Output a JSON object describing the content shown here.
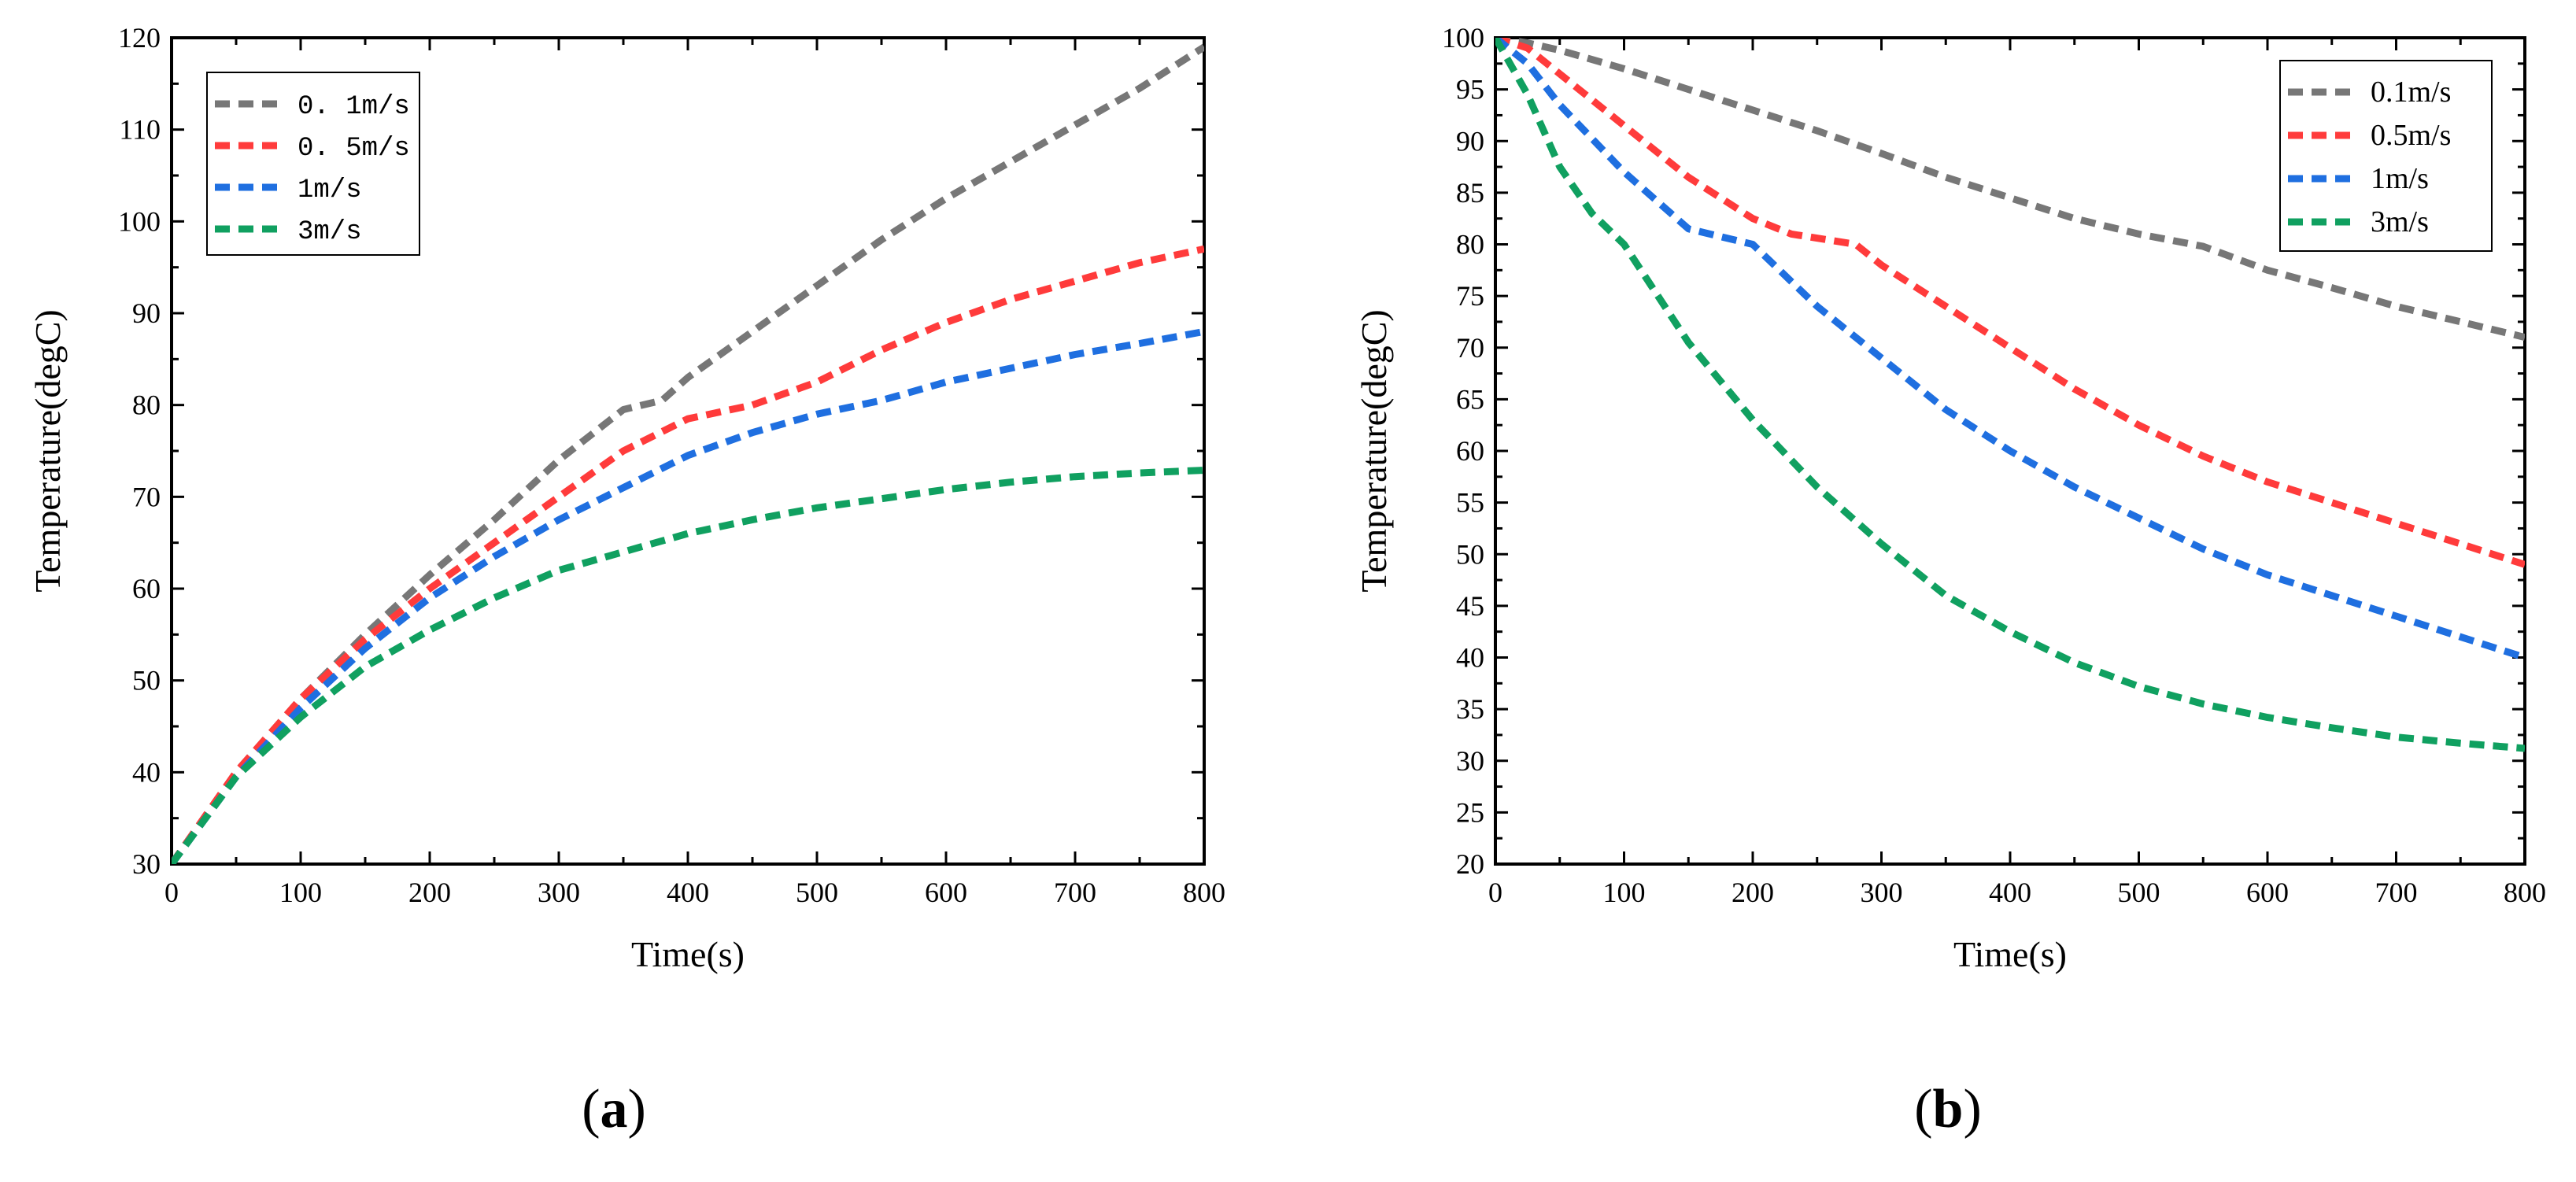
{
  "chart_data": [
    {
      "type": "line",
      "panel_label": "(a)",
      "panel_letter": "a",
      "xlabel": "Time(s)",
      "ylabel": "Temperature(degC)",
      "xlim": [
        0,
        800
      ],
      "ylim": [
        30,
        120
      ],
      "xticks": [
        0,
        100,
        200,
        300,
        400,
        500,
        600,
        700,
        800
      ],
      "yticks": [
        30,
        40,
        50,
        60,
        70,
        80,
        90,
        100,
        110,
        120
      ],
      "legend_position": "top-left",
      "series": [
        {
          "name": "0. 1m/s",
          "color": "#777777",
          "x": [
            0,
            50,
            100,
            150,
            200,
            250,
            300,
            350,
            380,
            400,
            450,
            500,
            550,
            600,
            650,
            700,
            750,
            800
          ],
          "y": [
            30,
            40,
            48,
            55,
            61.5,
            67.5,
            74,
            79.5,
            80.5,
            83,
            88,
            93,
            98,
            102.5,
            106.5,
            110.5,
            114.5,
            119
          ]
        },
        {
          "name": "0. 5m/s",
          "color": "#ff3b3b",
          "x": [
            0,
            50,
            100,
            150,
            200,
            250,
            300,
            350,
            400,
            450,
            500,
            550,
            600,
            650,
            700,
            750,
            800
          ],
          "y": [
            30,
            40,
            48,
            54.5,
            60,
            65,
            70,
            75,
            78.5,
            80,
            82.5,
            86,
            89,
            91.5,
            93.5,
            95.5,
            97
          ]
        },
        {
          "name": "1m/s",
          "color": "#1f6fe0",
          "x": [
            0,
            50,
            100,
            150,
            200,
            250,
            300,
            350,
            400,
            450,
            500,
            550,
            600,
            650,
            700,
            750,
            800
          ],
          "y": [
            30,
            39.5,
            47,
            53.5,
            59,
            63.5,
            67.5,
            71,
            74.5,
            77,
            79,
            80.5,
            82.5,
            84,
            85.5,
            86.7,
            88
          ]
        },
        {
          "name": "3m/s",
          "color": "#10a060",
          "x": [
            0,
            50,
            100,
            150,
            200,
            250,
            300,
            350,
            400,
            450,
            500,
            550,
            600,
            650,
            700,
            750,
            800
          ],
          "y": [
            30,
            39.5,
            46,
            51.5,
            55.5,
            59,
            62,
            64,
            66,
            67.5,
            68.8,
            69.8,
            70.8,
            71.6,
            72.2,
            72.6,
            72.9
          ]
        }
      ]
    },
    {
      "type": "line",
      "panel_label": "(b)",
      "panel_letter": "b",
      "xlabel": "Time(s)",
      "ylabel": "Temperature(degC)",
      "xlim": [
        0,
        800
      ],
      "ylim": [
        20,
        100
      ],
      "xticks": [
        0,
        100,
        200,
        300,
        400,
        500,
        600,
        700,
        800
      ],
      "yticks": [
        20,
        25,
        30,
        35,
        40,
        45,
        50,
        55,
        60,
        65,
        70,
        75,
        80,
        85,
        90,
        95,
        100
      ],
      "legend_position": "top-right",
      "series": [
        {
          "name": "0.1m/s",
          "color": "#777777",
          "x": [
            0,
            25,
            50,
            100,
            150,
            200,
            250,
            300,
            350,
            400,
            450,
            500,
            550,
            600,
            650,
            700,
            750,
            800
          ],
          "y": [
            100,
            99.5,
            98.8,
            97,
            95,
            93,
            91,
            88.8,
            86.5,
            84.5,
            82.5,
            81,
            79.8,
            77.5,
            75.8,
            74,
            72.5,
            71
          ]
        },
        {
          "name": "0.5m/s",
          "color": "#ff3b3b",
          "x": [
            0,
            25,
            50,
            100,
            150,
            200,
            230,
            280,
            300,
            350,
            400,
            450,
            500,
            550,
            600,
            650,
            700,
            750,
            800
          ],
          "y": [
            100,
            99,
            96.5,
            91.5,
            86.5,
            82.5,
            81,
            80,
            78,
            74,
            70,
            66,
            62.5,
            59.5,
            57,
            55,
            53,
            51,
            49
          ]
        },
        {
          "name": "1m/s",
          "color": "#1f6fe0",
          "x": [
            0,
            25,
            50,
            100,
            150,
            200,
            250,
            300,
            350,
            400,
            450,
            500,
            550,
            600,
            650,
            700,
            750,
            800
          ],
          "y": [
            100,
            97.5,
            93.5,
            87,
            81.5,
            80,
            74,
            69,
            64,
            60,
            56.5,
            53.5,
            50.5,
            48,
            46,
            44,
            42,
            40
          ]
        },
        {
          "name": "3m/s",
          "color": "#10a060",
          "x": [
            0,
            25,
            50,
            75,
            100,
            150,
            200,
            250,
            300,
            350,
            400,
            450,
            500,
            550,
            600,
            650,
            700,
            750,
            800
          ],
          "y": [
            100,
            94.5,
            87.5,
            83,
            80,
            70.5,
            63,
            56.5,
            51,
            46,
            42.5,
            39.5,
            37.2,
            35.5,
            34.2,
            33.2,
            32.3,
            31.7,
            31.2
          ]
        }
      ]
    }
  ]
}
